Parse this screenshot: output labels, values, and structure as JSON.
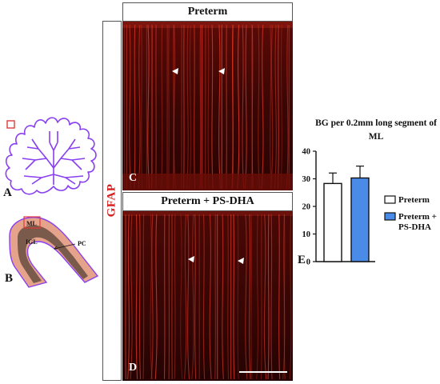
{
  "figure": {
    "panel_letters": {
      "a": "A",
      "b": "B",
      "c": "C",
      "d": "D",
      "e": "E"
    },
    "gfap_label": "GFAP",
    "headers": {
      "c": "Preterm",
      "d": "Preterm + PS-DHA"
    },
    "schematic_b_labels": {
      "ml": "ML",
      "igl": "IGL",
      "pc": "PC"
    }
  },
  "colors": {
    "outline": "#8a3ff0",
    "highlight_box": "#e03a3a",
    "gfap_red": "#d61c1c",
    "igl_brown": "#7a5a4a",
    "ml_pink": "#e6a38c",
    "bar_preterm": "#ffffff",
    "bar_ps_dha": "#4a8be8"
  },
  "chart_data": {
    "type": "bar",
    "title": "BG per 0.2mm long segment of ML",
    "categories": [
      "Preterm",
      "Preterm + PS-DHA"
    ],
    "series": [
      {
        "name": "Preterm",
        "value": 28.3,
        "error": 3.8,
        "color": "#ffffff"
      },
      {
        "name": "Preterm + PS-DHA",
        "value": 30.3,
        "error": 4.3,
        "color": "#4a8be8"
      }
    ],
    "ylim": [
      0,
      40
    ],
    "yticks": [
      "0",
      "10",
      "20",
      "30",
      "40"
    ],
    "legend": [
      "Preterm",
      "Preterm +",
      "PS-DHA"
    ],
    "legend_position": "right",
    "grid": false
  }
}
